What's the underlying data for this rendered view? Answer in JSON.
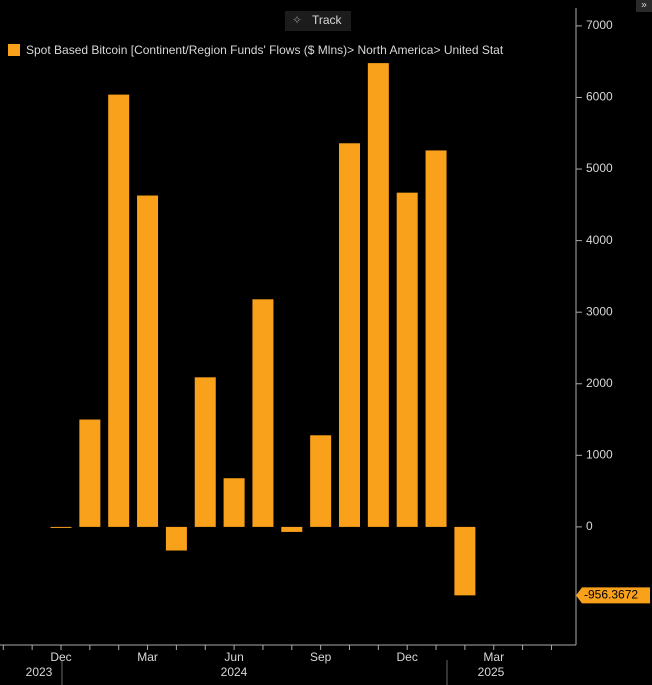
{
  "toolbar": {
    "button": "Track",
    "expand": "»"
  },
  "chart_data": {
    "type": "bar",
    "legend": "Spot Based Bitcoin [Continent/Region Funds' Flows ($ Mlns)> North America> United Stat",
    "color": "#f9a11b",
    "categories": [
      null,
      null,
      "Dec",
      null,
      null,
      "Mar",
      null,
      null,
      "Jun",
      null,
      null,
      "Sep",
      null,
      null,
      "Dec",
      null,
      null,
      "Mar",
      null,
      null
    ],
    "values": [
      null,
      null,
      -10,
      1500,
      6040,
      4630,
      -330,
      2090,
      680,
      3180,
      -70,
      1280,
      5360,
      6480,
      4670,
      5260,
      -956.3672,
      null,
      null,
      null
    ],
    "value_labels": [
      null,
      null,
      null,
      null,
      null,
      null,
      null,
      null,
      null,
      null,
      null,
      null,
      null,
      null,
      null,
      null,
      "-956.3672",
      null,
      null,
      null
    ],
    "years": [
      "2023",
      "2024",
      "2025"
    ],
    "ylim": [
      -1650,
      7250
    ],
    "yticks": [
      0,
      1000,
      2000,
      3000,
      4000,
      5000,
      6000,
      7000
    ]
  }
}
